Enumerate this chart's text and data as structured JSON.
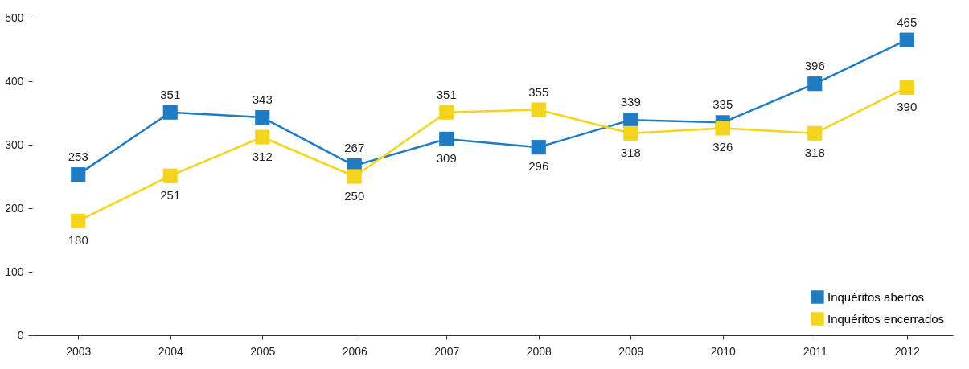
{
  "chart_data": {
    "type": "line",
    "categories": [
      "2003",
      "2004",
      "2005",
      "2006",
      "2007",
      "2008",
      "2009",
      "2010",
      "2011",
      "2012"
    ],
    "series": [
      {
        "name": "Inquéritos abertos",
        "color": "#1f7cc4",
        "values": [
          253,
          351,
          343,
          267,
          309,
          296,
          339,
          335,
          396,
          465
        ]
      },
      {
        "name": "Inquéritos encerrados",
        "color": "#f4d41c",
        "values": [
          180,
          251,
          312,
          250,
          351,
          355,
          318,
          326,
          318,
          390
        ]
      }
    ],
    "ylim": [
      0,
      500
    ],
    "yticks": [
      0,
      100,
      200,
      300,
      400,
      500
    ],
    "grid": false,
    "legend": "bottom right",
    "marker": "square",
    "line_style": "solid",
    "data_labels": true
  }
}
